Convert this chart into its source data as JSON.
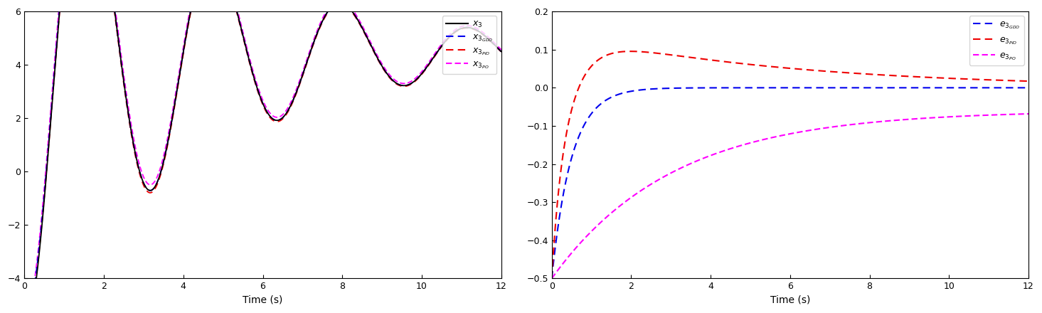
{
  "left_xlim": [
    0,
    12
  ],
  "left_ylim": [
    -4,
    6
  ],
  "left_yticks": [
    -4,
    -2,
    0,
    2,
    4,
    6
  ],
  "right_xlim": [
    0,
    12
  ],
  "right_ylim": [
    -0.5,
    0.2
  ],
  "right_yticks": [
    -0.5,
    -0.4,
    -0.3,
    -0.2,
    -0.1,
    0.0,
    0.1,
    0.2
  ],
  "xlabel": "Time (s)",
  "colors": {
    "x3": "#000000",
    "x3_GDO": "#0000EE",
    "x3_PIO": "#EE0000",
    "x3_PO": "#FF00FF",
    "e3_GDO": "#0000EE",
    "e3_PIO": "#EE0000",
    "e3_PO": "#FF00FF"
  },
  "legend_left": [
    "$x_3$",
    "$x_{3_{GDO}}$",
    "$x_{3_{PIO}}$",
    "$x_{3_{PO}}$"
  ],
  "legend_right": [
    "$e_{3_{GDO}}$",
    "$e_{3_{PIO}}$",
    "$e_{3_{PO}}$"
  ]
}
